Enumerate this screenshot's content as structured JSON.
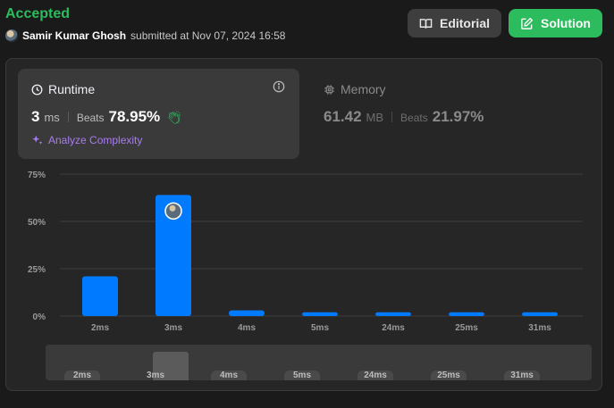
{
  "header": {
    "status": "Accepted",
    "submitter_name": "Samir Kumar Ghosh",
    "submitted_text": "submitted at Nov 07, 2024 16:58",
    "editorial_label": "Editorial",
    "solution_label": "Solution"
  },
  "runtime": {
    "title": "Runtime",
    "value": "3",
    "unit": "ms",
    "beats_label": "Beats",
    "beats_value": "78.95%",
    "analyze_label": "Analyze Complexity"
  },
  "memory": {
    "title": "Memory",
    "value": "61.42",
    "unit": "MB",
    "beats_label": "Beats",
    "beats_value": "21.97%"
  },
  "colors": {
    "accent_green": "#2cbb5d",
    "bar_blue": "#007aff",
    "analyze_purple": "#a97cf0"
  },
  "chart_data": {
    "type": "bar",
    "categories": [
      "2ms",
      "3ms",
      "4ms",
      "5ms",
      "24ms",
      "25ms",
      "31ms"
    ],
    "values": [
      21,
      64,
      3,
      2,
      2,
      2,
      2
    ],
    "y_ticks": [
      "75%",
      "50%",
      "25%",
      "0%"
    ],
    "ylim": [
      0,
      75
    ],
    "highlight_category": "3ms",
    "grid": true
  },
  "range_slider": {
    "labels": [
      "2ms",
      "3ms",
      "4ms",
      "5ms",
      "24ms",
      "25ms",
      "31ms"
    ]
  }
}
